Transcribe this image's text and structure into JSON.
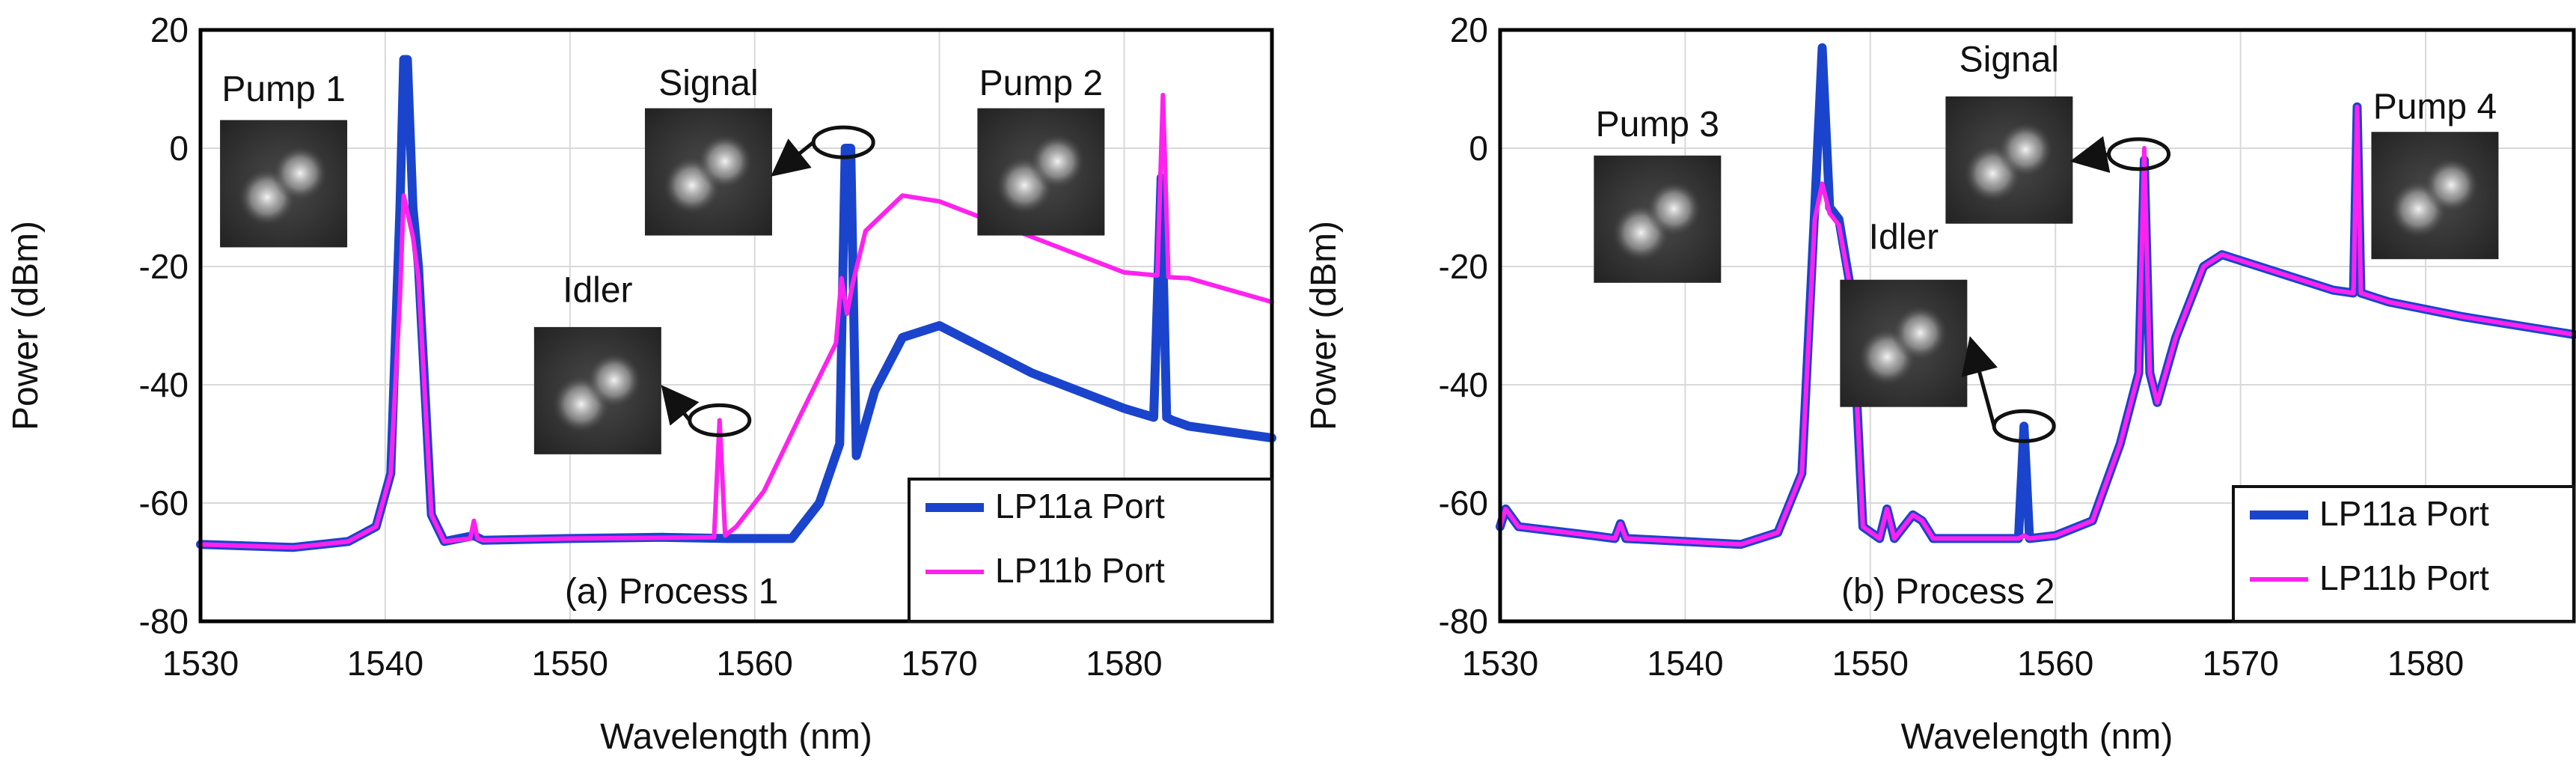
{
  "colors": {
    "lp11a": "#1a44cc",
    "lp11b": "#ff22ee",
    "grid": "#d9d9d9",
    "frame": "#000000"
  },
  "chart_data": [
    {
      "type": "line",
      "panel_label": "(a) Process 1",
      "xlabel": "Wavelength (nm)",
      "ylabel": "Power (dBm)",
      "xlim": [
        1530,
        1588
      ],
      "ylim": [
        -80,
        20
      ],
      "xticks": [
        1530,
        1540,
        1550,
        1560,
        1570,
        1580
      ],
      "yticks": [
        20,
        0,
        -20,
        -40,
        -60,
        -80
      ],
      "legend": [
        "LP11a Port",
        "LP11b Port"
      ],
      "legend_position": "bottom-right",
      "annotations": [
        {
          "text": "Pump 1",
          "x": 1534.5,
          "y": 8,
          "has_mode_image": true,
          "mode_x": 1534.5,
          "mode_y": -6
        },
        {
          "text": "Idler",
          "x": 1551.5,
          "y": -26,
          "has_mode_image": true,
          "mode_x": 1551.5,
          "mode_y": -41,
          "arrow_to": [
            1558.1,
            -46
          ]
        },
        {
          "text": "Signal",
          "x": 1557.5,
          "y": 9,
          "has_mode_image": true,
          "mode_x": 1557.5,
          "mode_y": -4,
          "arrow_to": [
            1564.8,
            1
          ]
        },
        {
          "text": "Pump 2",
          "x": 1575.5,
          "y": 9,
          "has_mode_image": true,
          "mode_x": 1575.5,
          "mode_y": -4
        }
      ],
      "series": [
        {
          "name": "LP11a Port",
          "color": "#1a44cc",
          "x": [
            1530,
            1535,
            1538,
            1539.5,
            1540.3,
            1540.8,
            1541.0,
            1541.2,
            1541.5,
            1541.8,
            1542.5,
            1543.2,
            1544.8,
            1545.3,
            1550,
            1555,
            1558.5,
            1559,
            1562,
            1563.5,
            1564.6,
            1564.9,
            1565.2,
            1565.5,
            1566.5,
            1568,
            1570,
            1575,
            1580,
            1581.6,
            1582.0,
            1582.3,
            1582.6,
            1583.5,
            1588
          ],
          "y": [
            -67,
            -67.5,
            -66.5,
            -64,
            -55,
            -10,
            15,
            15,
            -10,
            -20,
            -62,
            -66.5,
            -65.5,
            -66.3,
            -66,
            -65.8,
            -66,
            -66,
            -66,
            -60,
            -50,
            0,
            0,
            -52,
            -41,
            -32,
            -30,
            -38,
            -44,
            -45.5,
            -5,
            -45.5,
            -46,
            -47,
            -49
          ]
        },
        {
          "name": "LP11b Port",
          "color": "#ff22ee",
          "x": [
            1530,
            1535,
            1538,
            1539.5,
            1540.3,
            1540.8,
            1541.0,
            1541.5,
            1541.8,
            1542.5,
            1543.2,
            1544.6,
            1544.8,
            1545.0,
            1545.3,
            1550,
            1557.8,
            1558.1,
            1558.4,
            1559,
            1560.5,
            1562.5,
            1564.4,
            1564.7,
            1565.0,
            1565.3,
            1566,
            1568,
            1570,
            1575,
            1580,
            1581.8,
            1582.1,
            1582.4,
            1583.5,
            1588
          ],
          "y": [
            -67,
            -67.5,
            -66.5,
            -64,
            -55,
            -25,
            -8,
            -15,
            -22,
            -62,
            -66.5,
            -66,
            -63,
            -66,
            -66.3,
            -66,
            -65.8,
            -46,
            -65.5,
            -64,
            -58,
            -45,
            -33,
            -22,
            -28,
            -23,
            -14,
            -8,
            -9,
            -15,
            -21,
            -21.5,
            9,
            -21.8,
            -22,
            -26
          ]
        }
      ]
    },
    {
      "type": "line",
      "panel_label": "(b) Process 2",
      "xlabel": "Wavelength (nm)",
      "ylabel": "Power (dBm)",
      "xlim": [
        1530,
        1588
      ],
      "ylim": [
        -80,
        20
      ],
      "xticks": [
        1530,
        1540,
        1550,
        1560,
        1570,
        1580
      ],
      "yticks": [
        20,
        0,
        -20,
        -40,
        -60,
        -80
      ],
      "legend": [
        "LP11a Port",
        "LP11b Port"
      ],
      "legend_position": "bottom-right",
      "annotations": [
        {
          "text": "Pump 3",
          "x": 1538.5,
          "y": 2,
          "has_mode_image": true,
          "mode_x": 1538.5,
          "mode_y": -12
        },
        {
          "text": "Signal",
          "x": 1557.5,
          "y": 13,
          "has_mode_image": true,
          "mode_x": 1557.5,
          "mode_y": -2,
          "arrow_to": [
            1564.5,
            -1
          ]
        },
        {
          "text": "Idler",
          "x": 1551.8,
          "y": -17,
          "has_mode_image": true,
          "mode_x": 1551.8,
          "mode_y": -33,
          "arrow_to": [
            1558.3,
            -47
          ]
        },
        {
          "text": "Pump 4",
          "x": 1580.5,
          "y": 5,
          "has_mode_image": true,
          "mode_x": 1580.5,
          "mode_y": -8
        }
      ],
      "series": [
        {
          "name": "LP11a Port",
          "color": "#1a44cc",
          "x": [
            1530,
            1530.3,
            1531,
            1535,
            1536.2,
            1536.5,
            1536.8,
            1540,
            1543,
            1545,
            1546.3,
            1547.0,
            1547.4,
            1547.8,
            1548.3,
            1549.0,
            1549.6,
            1550.5,
            1550.9,
            1551.3,
            1552.3,
            1552.8,
            1553.4,
            1555,
            1558.0,
            1558.3,
            1558.6,
            1560,
            1562,
            1563.5,
            1564.5,
            1564.8,
            1565.1,
            1565.5,
            1566.5,
            1568,
            1569,
            1572,
            1575,
            1576.1,
            1576.3,
            1576.5,
            1578,
            1582,
            1588
          ],
          "y": [
            -64,
            -61,
            -64,
            -65.5,
            -66,
            -63.5,
            -66,
            -66.5,
            -67,
            -65,
            -55,
            -10,
            17,
            -10,
            -12,
            -25,
            -64,
            -66,
            -61,
            -66,
            -62,
            -63,
            -66,
            -66,
            -66,
            -47,
            -66,
            -65.5,
            -63,
            -50,
            -38,
            -2,
            -38,
            -43,
            -32,
            -20,
            -18,
            -21,
            -24,
            -24.5,
            7,
            -24.5,
            -26,
            -28.5,
            -31.5
          ]
        },
        {
          "name": "LP11b Port",
          "color": "#ff22ee",
          "x": [
            1530,
            1530.3,
            1531,
            1535,
            1536.2,
            1536.5,
            1536.8,
            1540,
            1543,
            1545,
            1546.3,
            1547.0,
            1547.4,
            1547.8,
            1548.3,
            1549.0,
            1549.6,
            1550.5,
            1550.9,
            1551.3,
            1552.3,
            1552.8,
            1553.4,
            1555,
            1558.0,
            1558.3,
            1558.6,
            1560,
            1562,
            1563.5,
            1564.5,
            1564.8,
            1565.1,
            1565.5,
            1566.5,
            1568,
            1569,
            1572,
            1575,
            1576.1,
            1576.3,
            1576.5,
            1578,
            1582,
            1588
          ],
          "y": [
            -64,
            -61,
            -64,
            -65.5,
            -66,
            -63.5,
            -66,
            -66.5,
            -67,
            -65,
            -55,
            -12,
            -6,
            -11,
            -13,
            -25,
            -64,
            -66,
            -61,
            -66,
            -62,
            -63,
            -66,
            -66,
            -66,
            -65.5,
            -66,
            -65.5,
            -63,
            -50,
            -38,
            0,
            -38,
            -43,
            -32,
            -20,
            -18,
            -21,
            -24,
            -24.5,
            7,
            -24.5,
            -26,
            -28.5,
            -31.5
          ]
        }
      ]
    }
  ]
}
